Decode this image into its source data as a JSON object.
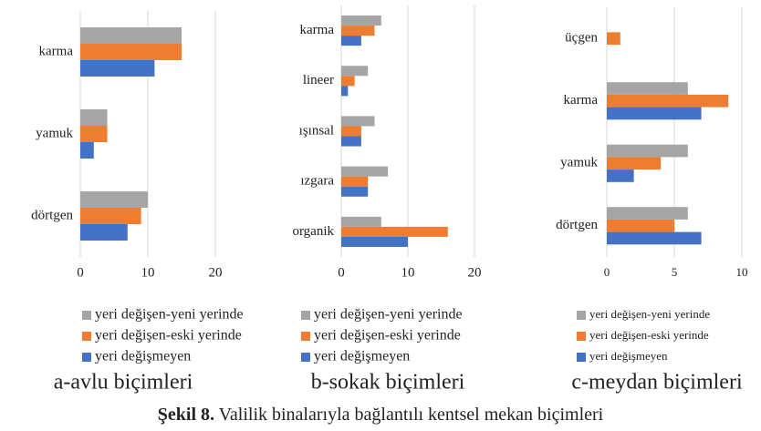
{
  "chart_data": [
    {
      "type": "bar",
      "orientation": "horizontal",
      "title": "a-avlu biçimleri",
      "categories": [
        "karma",
        "yamuk",
        "dörtgen"
      ],
      "series": [
        {
          "name": "yeri değişen-yeni yerinde",
          "color": "#a5a5a5",
          "values": [
            15,
            4,
            10
          ]
        },
        {
          "name": "yeri değişen-eski yerinde",
          "color": "#ed7d31",
          "values": [
            15,
            4,
            9
          ]
        },
        {
          "name": "yeri değişmeyen",
          "color": "#4472c4",
          "values": [
            11,
            2,
            7
          ]
        }
      ],
      "xlim": [
        0,
        20
      ],
      "xticks": [
        0,
        10,
        20
      ],
      "grid": true
    },
    {
      "type": "bar",
      "orientation": "horizontal",
      "title": "b-sokak biçimleri",
      "categories": [
        "karma",
        "lineer",
        "ışınsal",
        "ızgara",
        "organik"
      ],
      "series": [
        {
          "name": "yeri değişen-yeni yerinde",
          "color": "#a5a5a5",
          "values": [
            6,
            4,
            5,
            7,
            6
          ]
        },
        {
          "name": "yeri değişen-eski yerinde",
          "color": "#ed7d31",
          "values": [
            5,
            2,
            3,
            4,
            16
          ]
        },
        {
          "name": "yeri değişmeyen",
          "color": "#4472c4",
          "values": [
            3,
            1,
            3,
            4,
            10
          ]
        }
      ],
      "xlim": [
        0,
        20
      ],
      "xticks": [
        0,
        10,
        20
      ],
      "grid": true
    },
    {
      "type": "bar",
      "orientation": "horizontal",
      "title": "c-meydan biçimleri",
      "categories": [
        "üçgen",
        "karma",
        "yamuk",
        "dörtgen"
      ],
      "series": [
        {
          "name": "yeri değişen-yeni yerinde",
          "color": "#a5a5a5",
          "values": [
            0,
            6,
            6,
            6
          ]
        },
        {
          "name": "yeri değişen-eski yerinde",
          "color": "#ed7d31",
          "values": [
            1,
            9,
            4,
            5
          ]
        },
        {
          "name": "yeri değişmeyen",
          "color": "#4472c4",
          "values": [
            0,
            7,
            2,
            7
          ]
        }
      ],
      "xlim": [
        0,
        10
      ],
      "xticks": [
        0,
        5,
        10
      ],
      "grid": true
    }
  ],
  "caption": {
    "label": "Şekil 8.",
    "text": "Valilik binalarıyla bağlantılı kentsel mekan biçimleri"
  }
}
